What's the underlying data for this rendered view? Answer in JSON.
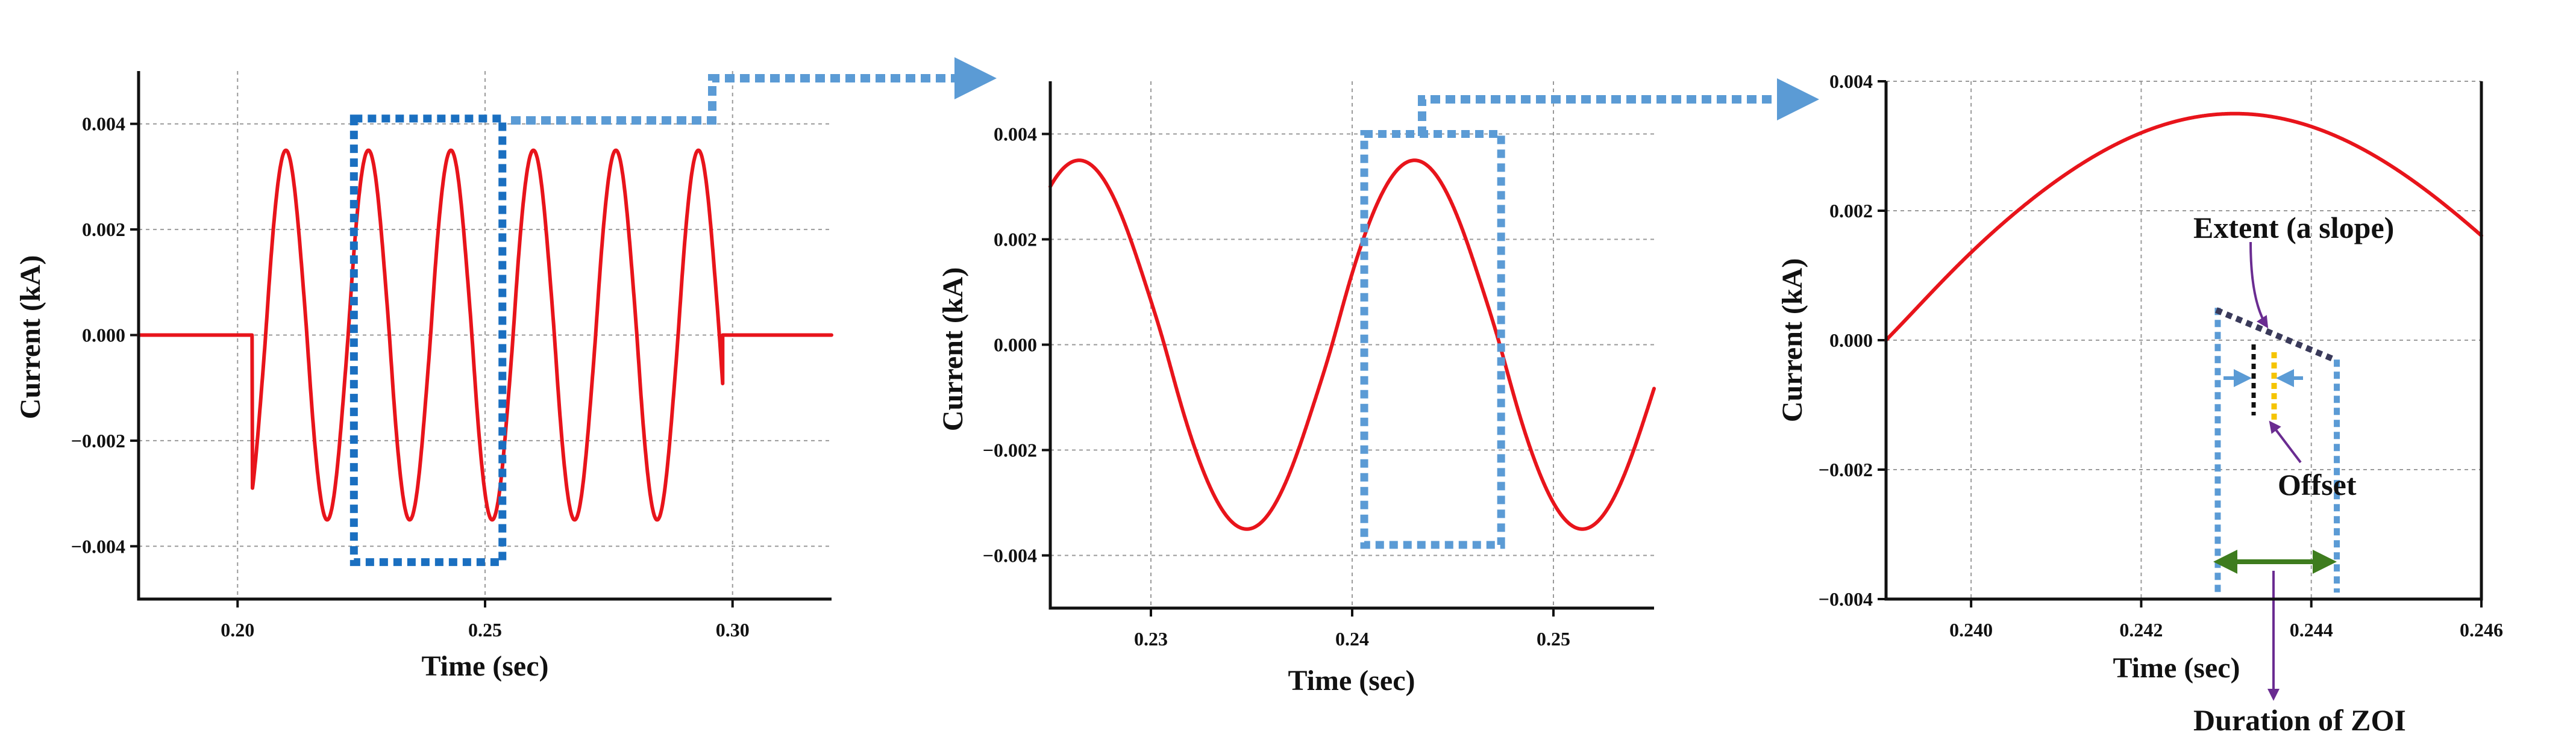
{
  "colors": {
    "curve": "#e8141b",
    "box1": "#1a6fc0",
    "box2": "#5b9bd5",
    "extent": "#3a3a5a",
    "offsetBlack": "#111111",
    "offsetYellow": "#f5c400",
    "annotArrow": "#6a2c91",
    "duration": "#3e7c1e"
  },
  "chart_data": [
    {
      "type": "line",
      "title": "",
      "xlabel": "Time (sec)",
      "ylabel": "Current (kA)",
      "xlim": [
        0.18,
        0.32
      ],
      "ylim": [
        -0.005,
        0.005
      ],
      "xticks": [
        0.2,
        0.25,
        0.3
      ],
      "xtick_labels": [
        "0.20",
        "0.25",
        "0.30"
      ],
      "yticks": [
        -0.004,
        -0.002,
        0.0,
        0.002,
        0.004
      ],
      "ytick_labels": [
        "−0.004",
        "−0.002",
        "0.000",
        "0.002",
        "0.004"
      ],
      "signal": {
        "start": 0.203,
        "end": 0.298,
        "frequency": 60,
        "peak_amp": 0.0035,
        "knee_level": 0.00115,
        "knee_width": 0.0012
      },
      "zoom_box": {
        "x": [
          0.2235,
          0.2535
        ],
        "y": [
          -0.0043,
          0.0041
        ]
      }
    },
    {
      "type": "line",
      "title": "",
      "xlabel": "Time (sec)",
      "ylabel": "Current (kA)",
      "xlim": [
        0.225,
        0.255
      ],
      "ylim": [
        -0.005,
        0.005
      ],
      "xticks": [
        0.23,
        0.24,
        0.25
      ],
      "xtick_labels": [
        "0.23",
        "0.24",
        "0.25"
      ],
      "yticks": [
        -0.004,
        -0.002,
        0.0,
        0.002,
        0.004
      ],
      "ytick_labels": [
        "−0.004",
        "−0.002",
        "0.000",
        "0.002",
        "0.004"
      ],
      "zoom_box": {
        "x": [
          0.2406,
          0.2474
        ],
        "y": [
          -0.0038,
          0.004
        ]
      }
    },
    {
      "type": "line",
      "title": "",
      "xlabel": "Time (sec)",
      "ylabel": "Current (kA)",
      "xlim": [
        0.239,
        0.246
      ],
      "ylim": [
        -0.004,
        0.004
      ],
      "xticks": [
        0.24,
        0.242,
        0.244,
        0.246
      ],
      "xtick_labels": [
        "0.240",
        "0.242",
        "0.244",
        "0.246"
      ],
      "yticks": [
        -0.004,
        -0.002,
        0.0,
        0.002,
        0.004
      ],
      "ytick_labels": [
        "−0.004",
        "−0.002",
        "0.000",
        "0.002",
        "0.004"
      ],
      "zoi": {
        "start": 0.2429,
        "end": 0.2443,
        "top": 0.0005,
        "bottom": -0.0039
      },
      "annotations": [
        "Extent (a slope)",
        "Offset",
        "Duration of ZOI"
      ]
    }
  ]
}
